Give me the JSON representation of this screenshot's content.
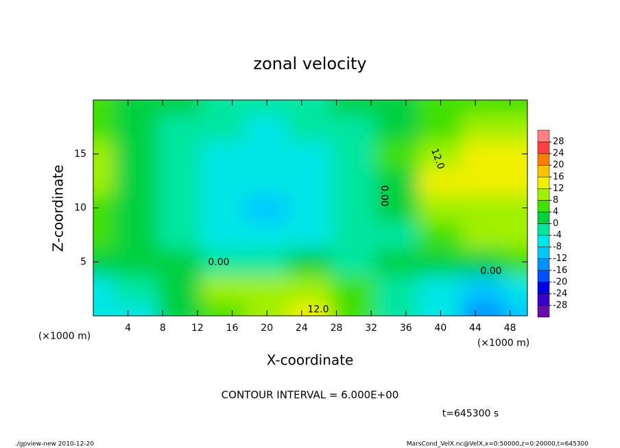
{
  "chart_data": {
    "type": "heatmap",
    "title": "zonal velocity",
    "x_label": "X-coordinate",
    "y_label": "Z-coordinate",
    "x_unit": "(×1000 m)",
    "y_unit": "(×1000 m)",
    "contour_interval": "CONTOUR INTERVAL = 6.000E+00",
    "time_label": "t=645300 s",
    "footer_left": "./gpview-new  2010-12-20",
    "footer_right": "MarsCond_VelX.nc@VelX,x=0:50000,z=0:20000,t=645300",
    "contour_labels": [
      "0.00",
      "0.00",
      "0.00",
      "12.0",
      "12.0"
    ],
    "x": [
      0,
      5,
      10,
      15,
      20,
      25,
      30,
      35,
      40,
      45,
      50
    ],
    "y": [
      0,
      2.5,
      5,
      7.5,
      10,
      12.5,
      15,
      17.5,
      20
    ],
    "z": [
      [
        -6,
        -8,
        0,
        6,
        10,
        13,
        4,
        -2,
        -8,
        -14,
        -10
      ],
      [
        -6,
        -4,
        2,
        8,
        9,
        10,
        6,
        -2,
        -6,
        -10,
        -8
      ],
      [
        2,
        2,
        0,
        -2,
        -2,
        0,
        -2,
        0,
        2,
        2,
        4
      ],
      [
        4,
        2,
        -2,
        -6,
        -8,
        -8,
        -4,
        -2,
        6,
        8,
        8
      ],
      [
        6,
        2,
        -2,
        -8,
        -10,
        -8,
        -2,
        0,
        10,
        10,
        10
      ],
      [
        8,
        2,
        -2,
        -8,
        -8,
        -6,
        -2,
        2,
        12,
        14,
        12
      ],
      [
        10,
        2,
        -2,
        -6,
        -8,
        -6,
        -2,
        4,
        10,
        12,
        12
      ],
      [
        6,
        2,
        -2,
        -4,
        -6,
        -4,
        -2,
        2,
        6,
        8,
        8
      ],
      [
        4,
        2,
        0,
        -2,
        -4,
        -2,
        0,
        2,
        4,
        6,
        6
      ]
    ],
    "xlim": [
      0,
      50
    ],
    "ylim": [
      0,
      20
    ],
    "xticks": [
      4,
      8,
      12,
      16,
      20,
      24,
      28,
      32,
      36,
      40,
      44,
      48
    ],
    "yticks": [
      5,
      10,
      15
    ],
    "clim": [
      -32,
      32
    ],
    "cticks": [
      -28,
      -24,
      -20,
      -16,
      -12,
      -8,
      -4,
      0,
      4,
      8,
      12,
      16,
      20,
      24,
      28
    ],
    "colors": [
      "#6a0dad",
      "#3a00cc",
      "#0000e6",
      "#0050ff",
      "#0090ff",
      "#00c8ff",
      "#00e6e6",
      "#00e6a0",
      "#00d040",
      "#40e000",
      "#a0f000",
      "#f0f000",
      "#ffc000",
      "#ff8000",
      "#ff4040",
      "#ff8080"
    ]
  }
}
